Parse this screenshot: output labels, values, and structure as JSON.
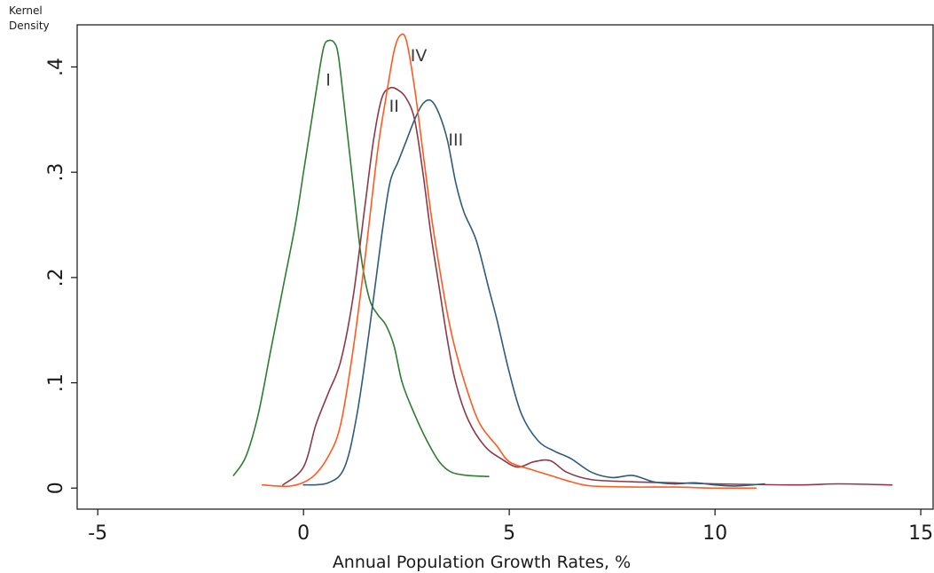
{
  "chart_data": {
    "type": "line",
    "title": "",
    "xlabel": "Annual Population Growth Rates, %",
    "ylabel": [
      "Kernel",
      "Density"
    ],
    "xlim": [
      -5.5,
      15.3
    ],
    "ylim": [
      -0.02,
      0.44
    ],
    "xticks": [
      {
        "value": -5,
        "label": "-5"
      },
      {
        "value": 0,
        "label": "0"
      },
      {
        "value": 5,
        "label": "5"
      },
      {
        "value": 10,
        "label": "10"
      },
      {
        "value": 15,
        "label": "15"
      }
    ],
    "yticks": [
      {
        "value": 0,
        "label": "0"
      },
      {
        "value": 0.1,
        "label": ".1"
      },
      {
        "value": 0.2,
        "label": ".2"
      },
      {
        "value": 0.3,
        "label": ".3"
      },
      {
        "value": 0.4,
        "label": ".4"
      }
    ],
    "grid": false,
    "legend": "none",
    "series": [
      {
        "name": "I",
        "color": "#2e7d32",
        "label_at": [
          0.6,
          0.387
        ],
        "points": [
          [
            -1.7,
            0.012
          ],
          [
            -1.4,
            0.03
          ],
          [
            -1.1,
            0.07
          ],
          [
            -0.8,
            0.13
          ],
          [
            -0.5,
            0.19
          ],
          [
            -0.2,
            0.25
          ],
          [
            0.0,
            0.3
          ],
          [
            0.2,
            0.35
          ],
          [
            0.4,
            0.4
          ],
          [
            0.5,
            0.42
          ],
          [
            0.6,
            0.425
          ],
          [
            0.75,
            0.423
          ],
          [
            0.85,
            0.41
          ],
          [
            1.0,
            0.36
          ],
          [
            1.2,
            0.29
          ],
          [
            1.4,
            0.22
          ],
          [
            1.6,
            0.18
          ],
          [
            1.8,
            0.165
          ],
          [
            2.0,
            0.155
          ],
          [
            2.2,
            0.135
          ],
          [
            2.4,
            0.1
          ],
          [
            2.7,
            0.07
          ],
          [
            3.0,
            0.045
          ],
          [
            3.3,
            0.025
          ],
          [
            3.6,
            0.015
          ],
          [
            4.0,
            0.012
          ],
          [
            4.5,
            0.011
          ]
        ]
      },
      {
        "name": "II",
        "color": "#8b3a4a",
        "label_at": [
          2.2,
          0.362
        ],
        "points": [
          [
            -0.5,
            0.003
          ],
          [
            0.0,
            0.02
          ],
          [
            0.3,
            0.06
          ],
          [
            0.6,
            0.09
          ],
          [
            0.9,
            0.12
          ],
          [
            1.2,
            0.18
          ],
          [
            1.5,
            0.27
          ],
          [
            1.7,
            0.33
          ],
          [
            1.9,
            0.37
          ],
          [
            2.1,
            0.38
          ],
          [
            2.3,
            0.378
          ],
          [
            2.5,
            0.37
          ],
          [
            2.7,
            0.35
          ],
          [
            2.9,
            0.3
          ],
          [
            3.1,
            0.24
          ],
          [
            3.3,
            0.19
          ],
          [
            3.5,
            0.14
          ],
          [
            3.7,
            0.1
          ],
          [
            4.0,
            0.065
          ],
          [
            4.4,
            0.04
          ],
          [
            4.8,
            0.028
          ],
          [
            5.2,
            0.02
          ],
          [
            5.6,
            0.025
          ],
          [
            6.0,
            0.026
          ],
          [
            6.4,
            0.015
          ],
          [
            7.0,
            0.008
          ],
          [
            8.0,
            0.006
          ],
          [
            9.0,
            0.005
          ],
          [
            10.0,
            0.004
          ],
          [
            12.0,
            0.003
          ],
          [
            13.0,
            0.004
          ],
          [
            14.3,
            0.003
          ]
        ]
      },
      {
        "name": "III",
        "color": "#2f5b7c",
        "label_at": [
          3.7,
          0.33
        ],
        "points": [
          [
            0.0,
            0.003
          ],
          [
            0.6,
            0.005
          ],
          [
            1.0,
            0.02
          ],
          [
            1.3,
            0.07
          ],
          [
            1.6,
            0.15
          ],
          [
            1.9,
            0.24
          ],
          [
            2.1,
            0.29
          ],
          [
            2.3,
            0.31
          ],
          [
            2.5,
            0.33
          ],
          [
            2.7,
            0.35
          ],
          [
            2.9,
            0.365
          ],
          [
            3.1,
            0.368
          ],
          [
            3.3,
            0.355
          ],
          [
            3.5,
            0.33
          ],
          [
            3.7,
            0.29
          ],
          [
            3.9,
            0.262
          ],
          [
            4.2,
            0.235
          ],
          [
            4.5,
            0.19
          ],
          [
            4.7,
            0.16
          ],
          [
            5.0,
            0.11
          ],
          [
            5.3,
            0.07
          ],
          [
            5.7,
            0.045
          ],
          [
            6.1,
            0.035
          ],
          [
            6.5,
            0.028
          ],
          [
            7.0,
            0.015
          ],
          [
            7.5,
            0.01
          ],
          [
            8.0,
            0.012
          ],
          [
            8.5,
            0.006
          ],
          [
            9.0,
            0.004
          ],
          [
            9.5,
            0.005
          ],
          [
            10.0,
            0.003
          ],
          [
            10.5,
            0.002
          ],
          [
            11.2,
            0.004
          ]
        ]
      },
      {
        "name": "IV",
        "color": "#ff5a1f",
        "label_at": [
          2.8,
          0.41
        ],
        "points": [
          [
            -1.0,
            0.003
          ],
          [
            -0.3,
            0.002
          ],
          [
            0.2,
            0.01
          ],
          [
            0.6,
            0.03
          ],
          [
            0.9,
            0.06
          ],
          [
            1.2,
            0.13
          ],
          [
            1.5,
            0.22
          ],
          [
            1.8,
            0.32
          ],
          [
            2.0,
            0.37
          ],
          [
            2.2,
            0.415
          ],
          [
            2.35,
            0.43
          ],
          [
            2.5,
            0.425
          ],
          [
            2.7,
            0.38
          ],
          [
            2.9,
            0.32
          ],
          [
            3.1,
            0.26
          ],
          [
            3.3,
            0.21
          ],
          [
            3.5,
            0.165
          ],
          [
            3.7,
            0.13
          ],
          [
            4.0,
            0.09
          ],
          [
            4.3,
            0.06
          ],
          [
            4.7,
            0.04
          ],
          [
            5.0,
            0.025
          ],
          [
            5.5,
            0.018
          ],
          [
            6.0,
            0.012
          ],
          [
            6.5,
            0.006
          ],
          [
            7.0,
            0.002
          ],
          [
            8.0,
            0.001
          ],
          [
            9.0,
            0.001
          ],
          [
            10.0,
            0.0
          ],
          [
            11.0,
            0.0
          ]
        ]
      }
    ]
  }
}
